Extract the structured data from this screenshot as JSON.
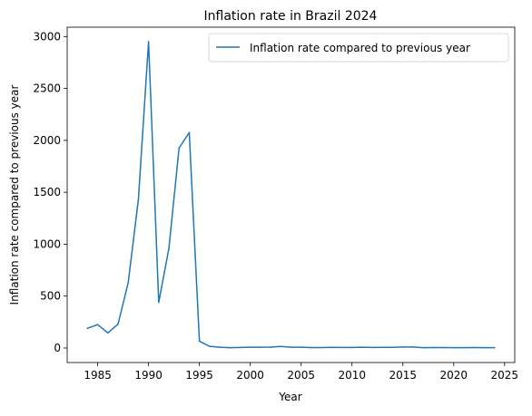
{
  "colors": {
    "series": "#1f77b4",
    "axis": "#000000",
    "legend_border": "#cccccc"
  },
  "chart_data": {
    "type": "line",
    "title": "Inflation rate in Brazil 2024",
    "xlabel": "Year",
    "ylabel": "Inflation rate compared to previous year",
    "xlim": [
      1982,
      2026
    ],
    "ylim": [
      -140,
      3090
    ],
    "xticks": [
      1985,
      1990,
      1995,
      2000,
      2005,
      2010,
      2015,
      2020,
      2025
    ],
    "yticks": [
      0,
      500,
      1000,
      1500,
      2000,
      2500,
      3000
    ],
    "legend_position": "top-right",
    "grid": false,
    "series": [
      {
        "name": "Inflation rate compared to previous year",
        "x": [
          1984,
          1985,
          1986,
          1987,
          1988,
          1989,
          1990,
          1991,
          1992,
          1993,
          1994,
          1995,
          1996,
          1997,
          1998,
          1999,
          2000,
          2001,
          2002,
          2003,
          2004,
          2005,
          2006,
          2007,
          2008,
          2009,
          2010,
          2011,
          2012,
          2013,
          2014,
          2015,
          2016,
          2017,
          2018,
          2019,
          2020,
          2021,
          2022,
          2023,
          2024
        ],
        "y": [
          190,
          225,
          145,
          230,
          630,
          1430,
          2950,
          440,
          960,
          1925,
          2075,
          66,
          16,
          7,
          3,
          5,
          7,
          7,
          8,
          15,
          7,
          7,
          4,
          4,
          6,
          5,
          5,
          7,
          5,
          6,
          6,
          9,
          9,
          3,
          4,
          4,
          3,
          3,
          4,
          3,
          3
        ]
      }
    ]
  }
}
